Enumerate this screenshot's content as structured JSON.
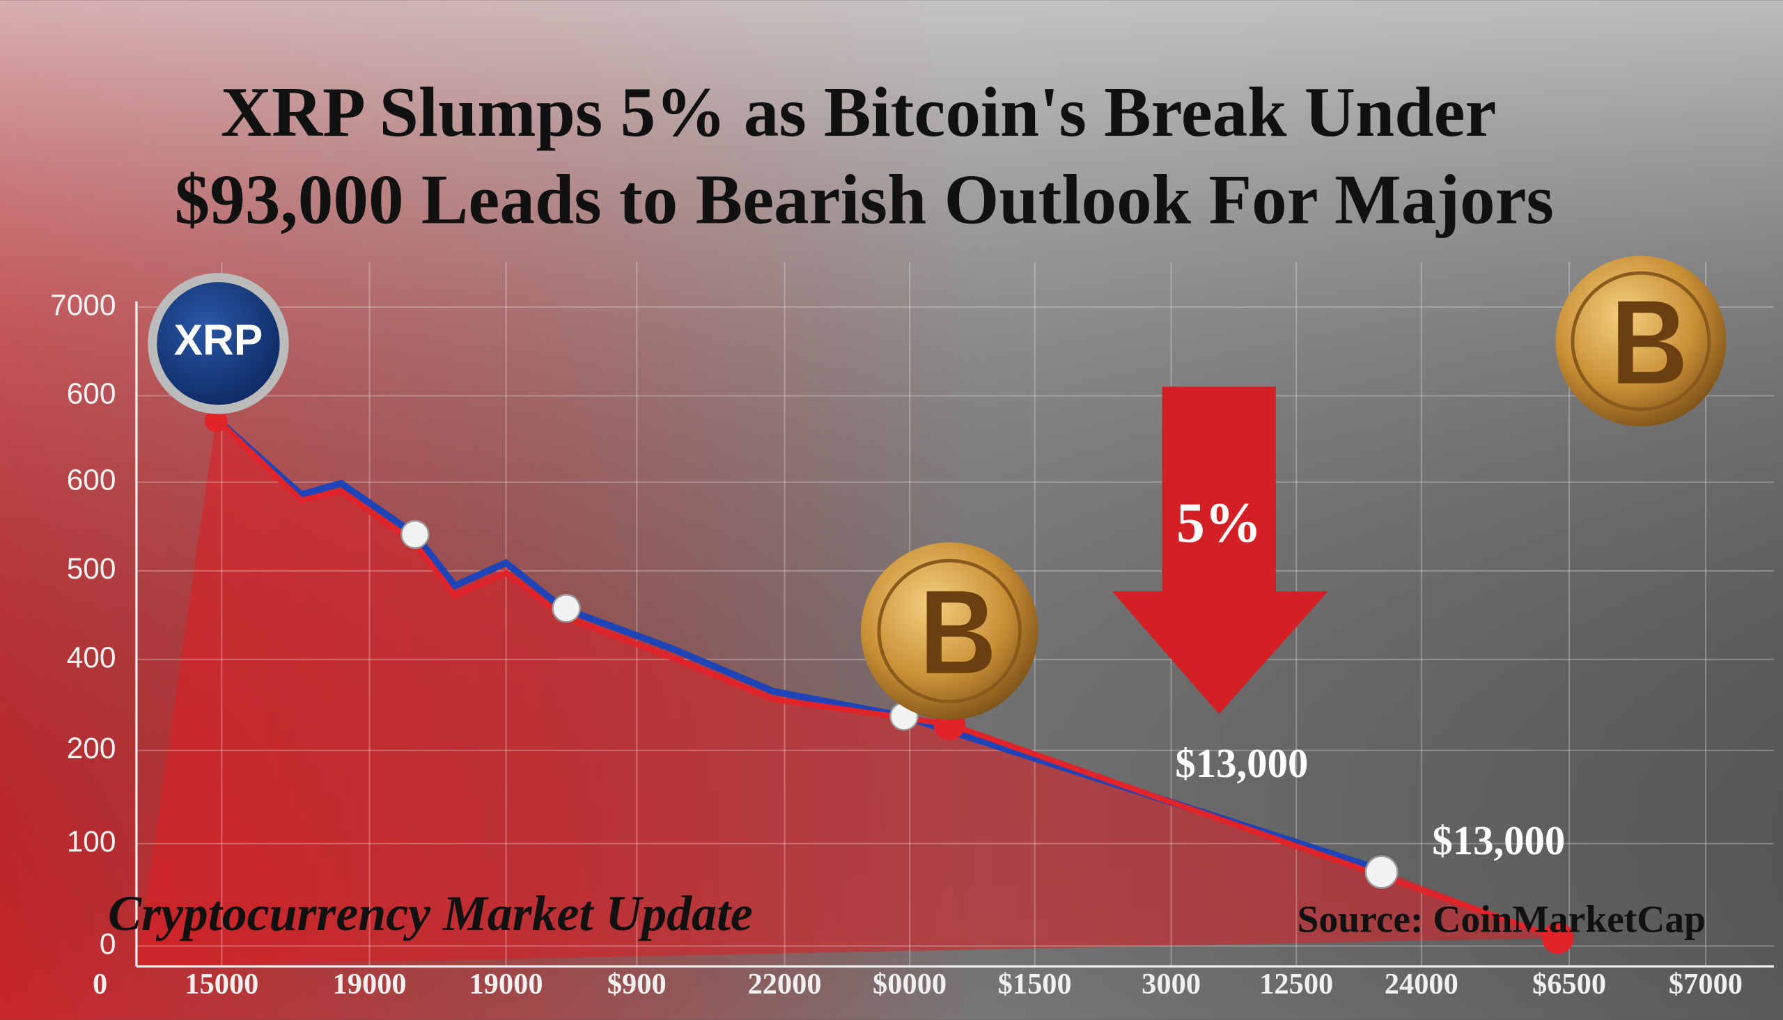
{
  "header": {
    "title_lines": [
      "XRP Slumps 5% as Bitcoin's Break Under",
      "$93,000 Leads to Bearish Outlook For Majors"
    ]
  },
  "axis": {
    "y_labels": [
      "7000",
      "600",
      "600",
      "500",
      "400",
      "200",
      "100",
      "0"
    ],
    "x_labels": [
      "0",
      "15000",
      "19000",
      "19000",
      "$900",
      "22000",
      "$0000",
      "$1500",
      "3000",
      "12500",
      "24000",
      "$6500",
      "$7000"
    ]
  },
  "annotations": {
    "coin_label": "XRP",
    "drop": "5%",
    "price_1": "$13,000",
    "price_2": "$13,000"
  },
  "footer": {
    "caption": "Cryptocurrency Market Update",
    "source": "Source: CoinMarketCap"
  }
}
